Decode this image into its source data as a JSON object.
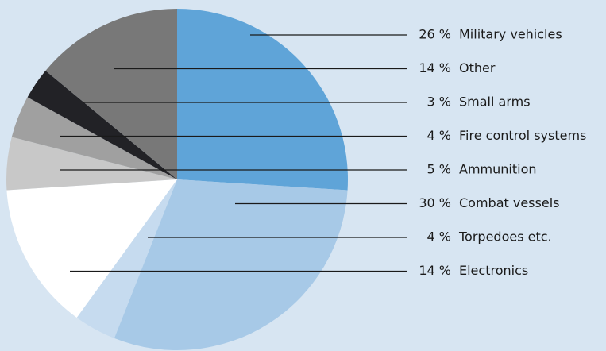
{
  "chart_data": {
    "type": "pie",
    "categories": [
      "Military vehicles",
      "Combat vessels",
      "Torpedoes etc.",
      "Electronics",
      "Ammunition",
      "Fire control systems",
      "Small arms",
      "Other"
    ],
    "values": [
      26,
      30,
      4,
      14,
      5,
      4,
      3,
      14
    ],
    "value_labels": [
      "26 %",
      "30 %",
      "4 %",
      "14 %",
      "5 %",
      "4 %",
      "3 %",
      "14 %"
    ],
    "colors": [
      "#5fa4d8",
      "#a7c9e7",
      "#c6dbef",
      "#ffffff",
      "#c8c8c8",
      "#a0a0a0",
      "#222226",
      "#787878"
    ]
  }
}
